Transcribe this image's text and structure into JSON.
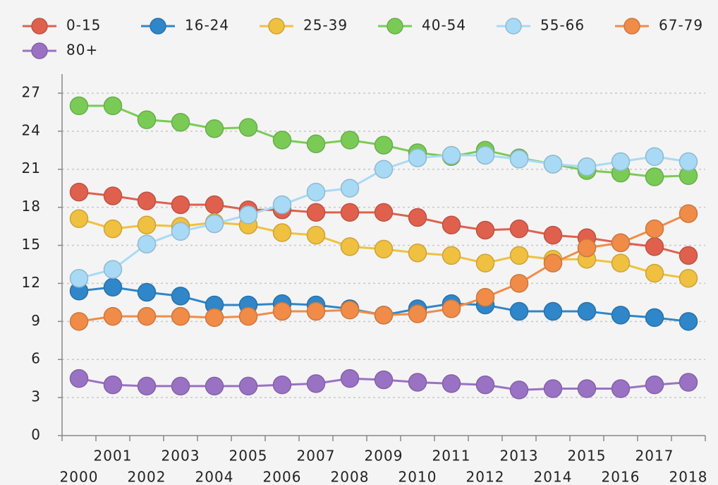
{
  "chart_data": {
    "type": "line",
    "categories": [
      "2000",
      "2001",
      "2002",
      "2003",
      "2004",
      "2005",
      "2006",
      "2007",
      "2008",
      "2009",
      "2010",
      "2011",
      "2012",
      "2013",
      "2014",
      "2015",
      "2016",
      "2017",
      "2018"
    ],
    "series": [
      {
        "name": "0-15",
        "color": "#e0604e",
        "values": [
          19.2,
          18.9,
          18.5,
          18.2,
          18.2,
          17.8,
          17.8,
          17.6,
          17.6,
          17.6,
          17.2,
          16.6,
          16.2,
          16.3,
          15.8,
          15.6,
          15.2,
          14.9,
          14.2
        ]
      },
      {
        "name": "16-24",
        "color": "#2f86c8",
        "values": [
          11.4,
          11.7,
          11.3,
          11.0,
          10.3,
          10.3,
          10.4,
          10.3,
          10.0,
          9.5,
          10.0,
          10.4,
          10.3,
          9.8,
          9.8,
          9.8,
          9.5,
          9.3,
          9.0
        ]
      },
      {
        "name": "25-39",
        "color": "#f0c040",
        "values": [
          17.1,
          16.3,
          16.6,
          16.5,
          16.8,
          16.6,
          16.0,
          15.8,
          14.9,
          14.7,
          14.4,
          14.2,
          13.6,
          14.2,
          13.9,
          13.9,
          13.6,
          12.8,
          12.4
        ]
      },
      {
        "name": "40-54",
        "color": "#7acb56",
        "values": [
          26.0,
          26.0,
          24.9,
          24.7,
          24.2,
          24.3,
          23.3,
          23.0,
          23.3,
          22.9,
          22.3,
          22.0,
          22.5,
          21.9,
          21.4,
          20.9,
          20.7,
          20.4,
          20.5
        ]
      },
      {
        "name": "55-66",
        "color": "#a8daf6",
        "values": [
          12.4,
          13.1,
          15.1,
          16.1,
          16.7,
          17.4,
          18.2,
          19.2,
          19.5,
          21.0,
          21.9,
          22.1,
          22.1,
          21.8,
          21.4,
          21.2,
          21.6,
          22.0,
          21.6
        ]
      },
      {
        "name": "67-79",
        "color": "#f08c48",
        "values": [
          9.0,
          9.4,
          9.4,
          9.4,
          9.3,
          9.4,
          9.8,
          9.8,
          9.9,
          9.5,
          9.6,
          10.0,
          10.9,
          12.0,
          13.6,
          14.8,
          15.2,
          16.3,
          17.5
        ]
      },
      {
        "name": "80+",
        "color": "#9a72c4",
        "values": [
          4.5,
          4.0,
          3.9,
          3.9,
          3.9,
          3.9,
          4.0,
          4.1,
          4.5,
          4.4,
          4.2,
          4.1,
          4.0,
          3.6,
          3.7,
          3.7,
          3.7,
          4.0,
          4.2
        ]
      }
    ],
    "ylim": [
      0,
      28.5
    ],
    "yticks": [
      0,
      3,
      6,
      9,
      12,
      15,
      18,
      21,
      24,
      27
    ],
    "grid": true
  }
}
